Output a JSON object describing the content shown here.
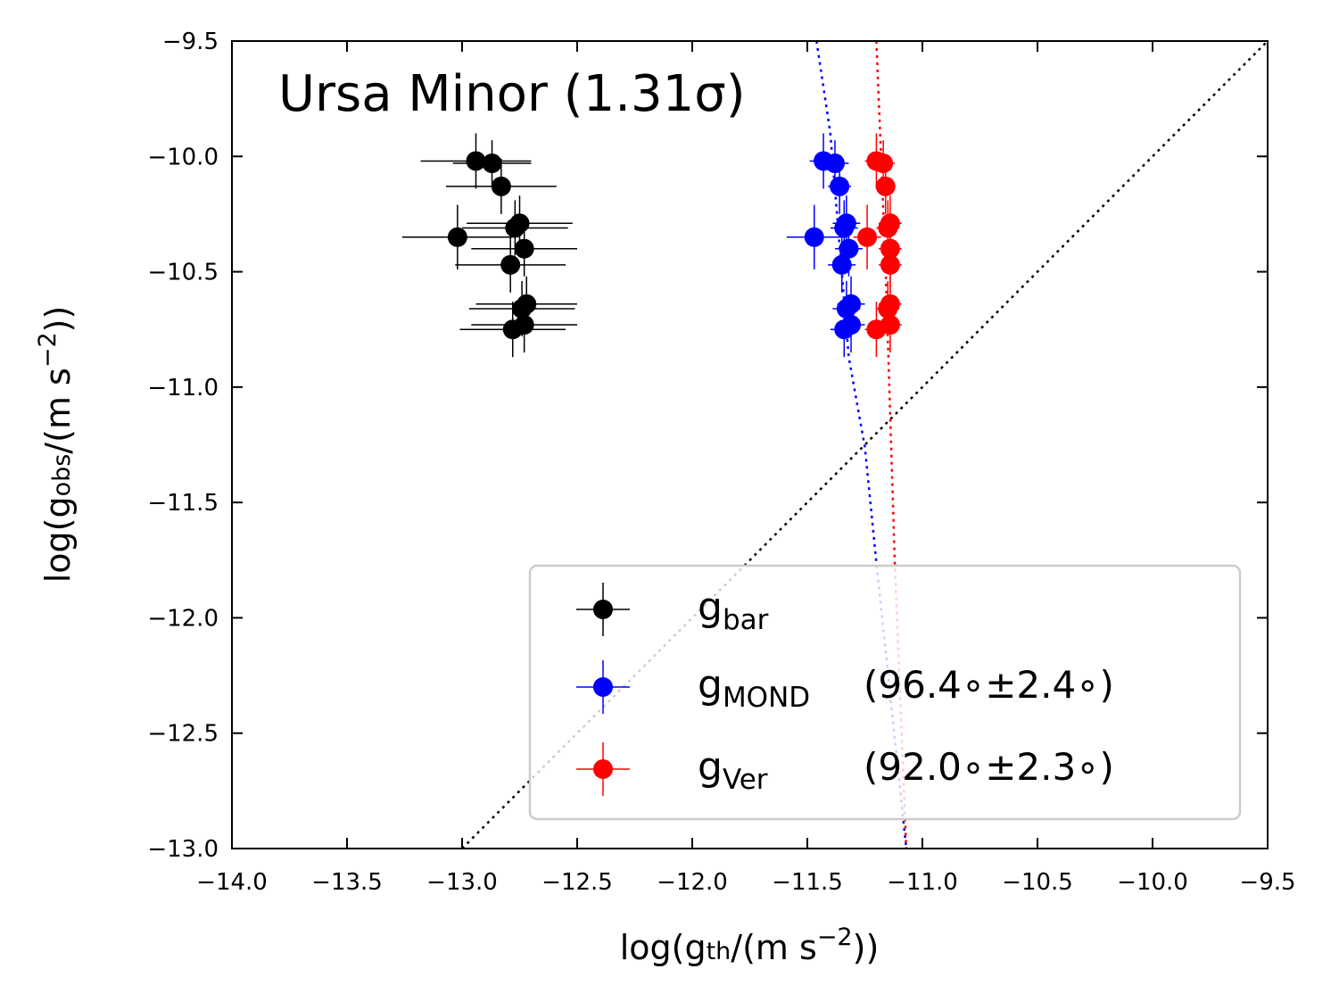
{
  "chart_data": {
    "type": "scatter",
    "title": "Ursa Minor (1.31σ)",
    "xlabel": {
      "text": "log(g",
      "sub": "th",
      "mid": "/(m s",
      "sup": "−2",
      "end": "))"
    },
    "ylabel": {
      "text": "log(g",
      "sub": "obs",
      "mid": "/(m s",
      "sup": "−2",
      "end": "))"
    },
    "xlim": [
      -14.0,
      -9.5
    ],
    "ylim": [
      -13.0,
      -9.5
    ],
    "xticks": [
      {
        "value": -14.0,
        "label": "−14.0"
      },
      {
        "value": -13.5,
        "label": "−13.5"
      },
      {
        "value": -13.0,
        "label": "−13.0"
      },
      {
        "value": -12.5,
        "label": "−12.5"
      },
      {
        "value": -12.0,
        "label": "−12.0"
      },
      {
        "value": -11.5,
        "label": "−11.5"
      },
      {
        "value": -11.0,
        "label": "−11.0"
      },
      {
        "value": -10.5,
        "label": "−10.5"
      },
      {
        "value": -10.0,
        "label": "−10.0"
      },
      {
        "value": -9.5,
        "label": "−9.5"
      }
    ],
    "yticks": [
      {
        "value": -13.0,
        "label": "−13.0"
      },
      {
        "value": -12.5,
        "label": "−12.5"
      },
      {
        "value": -12.0,
        "label": "−12.0"
      },
      {
        "value": -11.5,
        "label": "−11.5"
      },
      {
        "value": -11.0,
        "label": "−11.0"
      },
      {
        "value": -10.5,
        "label": "−10.5"
      },
      {
        "value": -10.0,
        "label": "−10.0"
      },
      {
        "value": -9.5,
        "label": "−9.5"
      }
    ],
    "grid": false,
    "legend": "lower right",
    "series": [
      {
        "name": "g",
        "subscript": "bar",
        "color": "#000000",
        "x": [
          -12.94,
          -12.87,
          -12.83,
          -12.75,
          -12.77,
          -13.02,
          -12.73,
          -12.79,
          -12.72,
          -12.74,
          -12.73,
          -12.78
        ],
        "values": [
          -10.02,
          -10.03,
          -10.13,
          -10.29,
          -10.31,
          -10.35,
          -10.4,
          -10.47,
          -10.64,
          -10.66,
          -10.73,
          -10.75
        ],
        "xerr": [
          0.24,
          0.17,
          0.24,
          0.23,
          0.23,
          0.24,
          0.23,
          0.24,
          0.22,
          0.23,
          0.23,
          0.23
        ],
        "yerr": [
          0.12,
          0.1,
          0.12,
          0.12,
          0.12,
          0.14,
          0.12,
          0.12,
          0.12,
          0.12,
          0.12,
          0.12
        ]
      },
      {
        "name": "g",
        "subscript": "MOND",
        "annotation": "(96.4∘±2.4∘)",
        "color": "#0000ff",
        "x": [
          -11.43,
          -11.38,
          -11.36,
          -11.33,
          -11.34,
          -11.47,
          -11.32,
          -11.35,
          -11.31,
          -11.33,
          -11.31,
          -11.34
        ],
        "values": [
          -10.02,
          -10.03,
          -10.13,
          -10.29,
          -10.31,
          -10.35,
          -10.4,
          -10.47,
          -10.64,
          -10.66,
          -10.73,
          -10.75
        ],
        "xerr": [
          0.06,
          0.06,
          0.05,
          0.06,
          0.06,
          0.12,
          0.06,
          0.06,
          0.06,
          0.06,
          0.06,
          0.06
        ],
        "yerr": [
          0.12,
          0.1,
          0.12,
          0.12,
          0.12,
          0.14,
          0.12,
          0.12,
          0.12,
          0.12,
          0.12,
          0.12
        ]
      },
      {
        "name": "g",
        "subscript": "Ver",
        "annotation": "(92.0∘±2.3∘)",
        "color": "#ff0000",
        "x": [
          -11.2,
          -11.17,
          -11.16,
          -11.14,
          -11.15,
          -11.24,
          -11.14,
          -11.14,
          -11.14,
          -11.15,
          -11.14,
          -11.2
        ],
        "values": [
          -10.02,
          -10.03,
          -10.13,
          -10.29,
          -10.31,
          -10.35,
          -10.4,
          -10.47,
          -10.64,
          -10.66,
          -10.73,
          -10.75
        ],
        "xerr": [
          0.05,
          0.05,
          0.04,
          0.05,
          0.05,
          0.06,
          0.05,
          0.05,
          0.05,
          0.05,
          0.05,
          0.05
        ],
        "yerr": [
          0.12,
          0.1,
          0.12,
          0.12,
          0.12,
          0.14,
          0.12,
          0.12,
          0.12,
          0.12,
          0.12,
          0.12
        ]
      }
    ],
    "lines": [
      {
        "color": "#000000",
        "x": [
          -13.0,
          -9.5
        ],
        "values": [
          -13.0,
          -9.5
        ]
      },
      {
        "color": "#0000ff",
        "x": [
          -11.46,
          -11.4,
          -11.32,
          -11.25,
          -11.2,
          -11.07
        ],
        "values": [
          -9.5,
          -9.9,
          -10.87,
          -11.26,
          -11.76,
          -13.0
        ]
      },
      {
        "color": "#ff0000",
        "x": [
          -11.2,
          -11.16,
          -11.12,
          -11.07
        ],
        "values": [
          -9.5,
          -10.48,
          -11.76,
          -13.0
        ]
      }
    ]
  }
}
